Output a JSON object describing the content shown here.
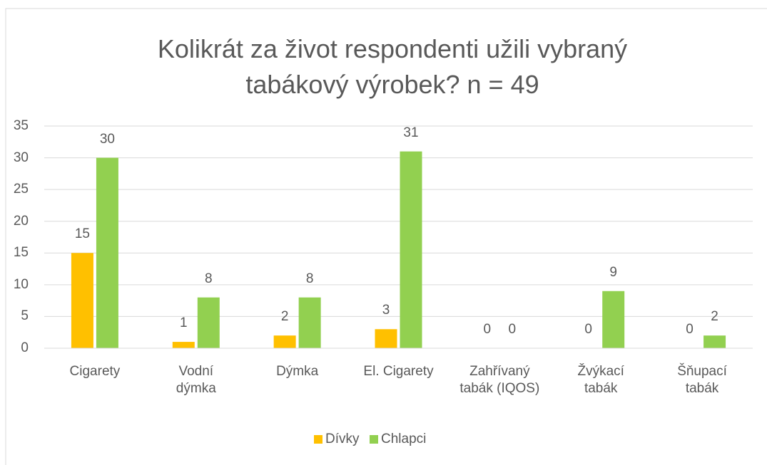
{
  "chart_data": {
    "type": "bar",
    "title": "Kolikrát za život respondenti užili vybraný tabákový výrobek? n = 49",
    "categories": [
      "Cigarety",
      "Vodní\ndýmka",
      "Dýmka",
      "El. Cigarety",
      "Zahřívaný\ntabák (IQOS)",
      "Žvýkací\ntabák",
      "Šňupací\ntabák"
    ],
    "series": [
      {
        "name": "Dívky",
        "color": "#ffc000",
        "values": [
          15,
          1,
          2,
          3,
          0,
          0,
          0
        ]
      },
      {
        "name": "Chlapci",
        "color": "#92d050",
        "values": [
          30,
          8,
          8,
          31,
          0,
          9,
          2
        ]
      }
    ],
    "ylim": [
      0,
      35
    ],
    "yticks": [
      0,
      5,
      10,
      15,
      20,
      25,
      30,
      35
    ],
    "grid": true,
    "legend": "bottom"
  }
}
